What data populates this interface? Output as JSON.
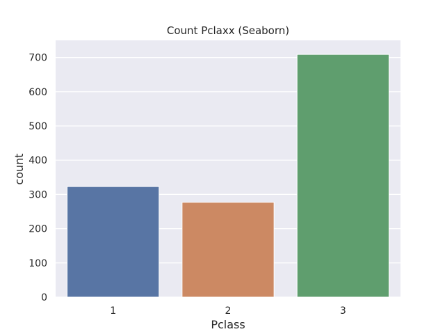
{
  "chart_data": {
    "type": "bar",
    "title": "Count Pclaxx (Seaborn)",
    "xlabel": "Pclass",
    "ylabel": "count",
    "categories": [
      "1",
      "2",
      "3"
    ],
    "values": [
      323,
      277,
      709
    ],
    "ylim": [
      0,
      750
    ],
    "yticks": [
      0,
      100,
      200,
      300,
      400,
      500,
      600,
      700
    ],
    "grid": true,
    "colors": [
      "#5875a4",
      "#cc8963",
      "#5f9e6e"
    ],
    "background": "#eaeaf2"
  }
}
